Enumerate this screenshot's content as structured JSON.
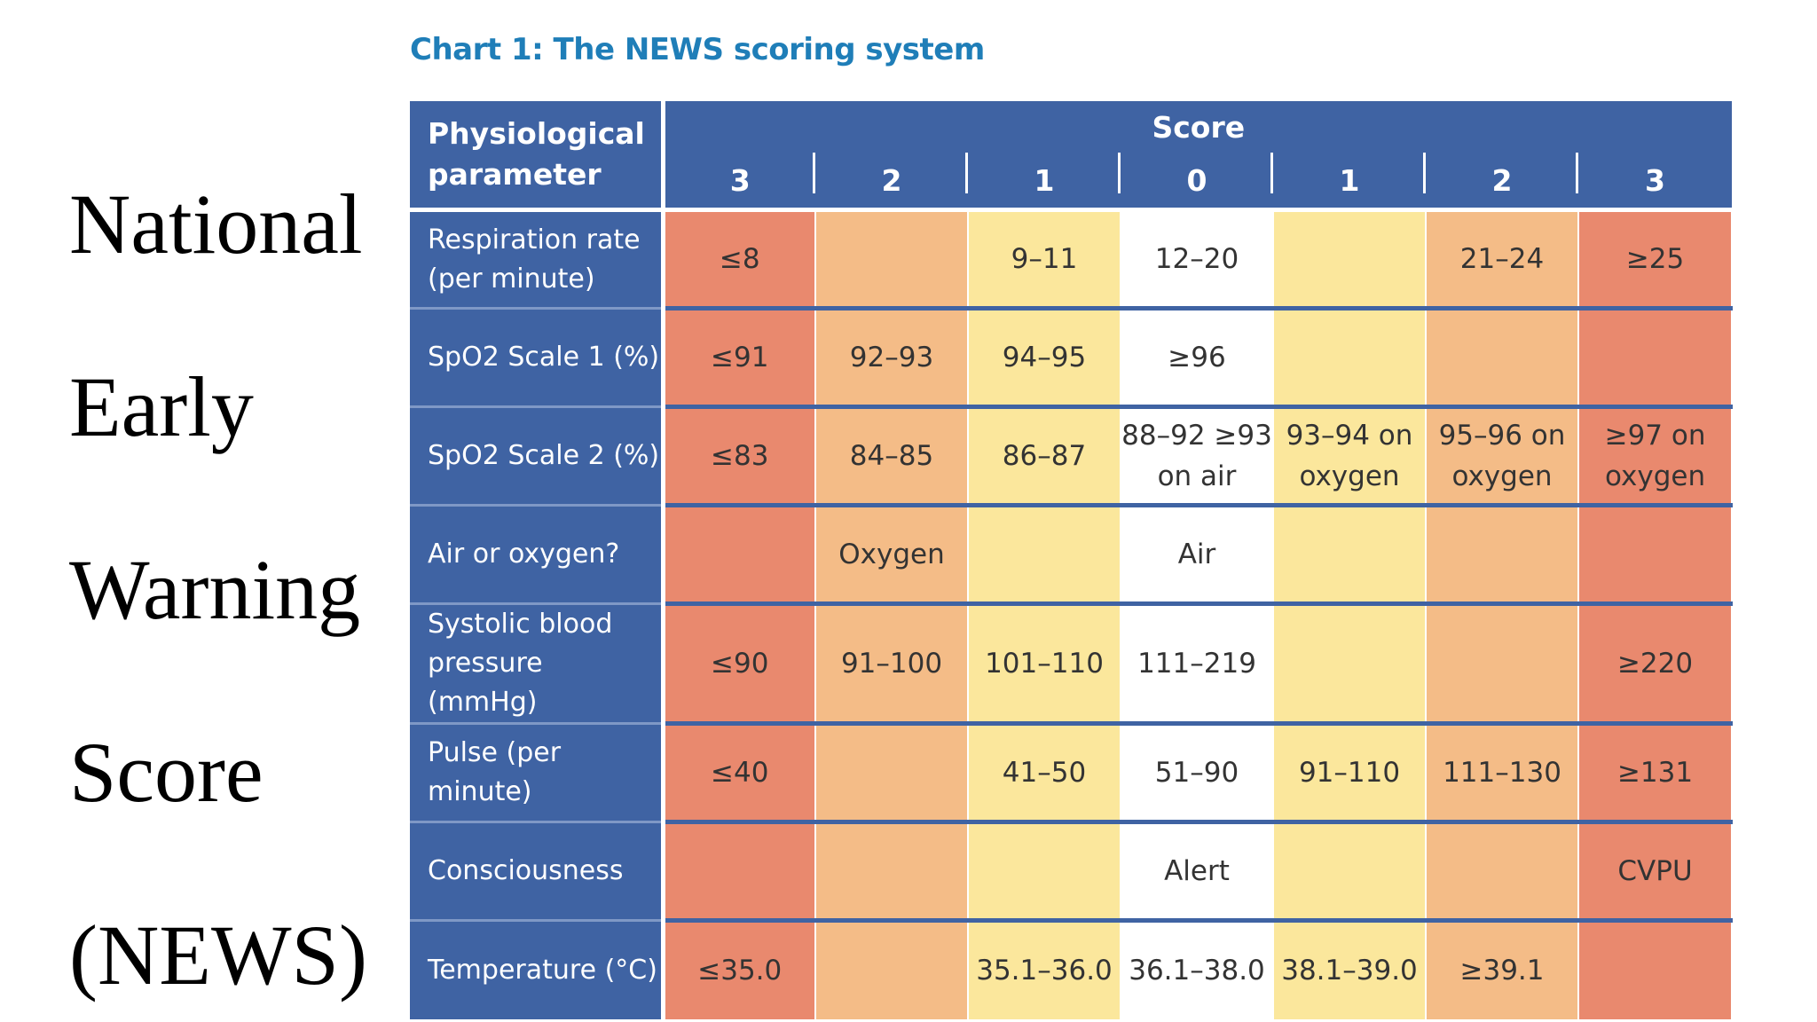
{
  "side_title": [
    "National",
    "Early",
    "Warning",
    "Score",
    "(NEWS)"
  ],
  "caption": "Chart 1:  The NEWS scoring system",
  "header": {
    "parameter": "Physiological parameter",
    "score": "Score",
    "score_columns": [
      "3",
      "2",
      "1",
      "0",
      "1",
      "2",
      "3"
    ]
  },
  "rows": [
    {
      "parameter": "Respiration rate (per minute)",
      "cells": [
        "≤8",
        "",
        "9–11",
        "12–20",
        "",
        "21–24",
        "≥25"
      ]
    },
    {
      "parameter": "SpO2 Scale 1 (%)",
      "cells": [
        "≤91",
        "92–93",
        "94–95",
        "≥96",
        "",
        "",
        ""
      ]
    },
    {
      "parameter": "SpO2 Scale 2 (%)",
      "cells": [
        "≤83",
        "84–85",
        "86–87",
        "88–92 ≥93 on air",
        "93–94 on oxygen",
        "95–96 on oxygen",
        "≥97 on oxygen"
      ]
    },
    {
      "parameter": "Air or oxygen?",
      "cells": [
        "",
        "Oxygen",
        "",
        "Air",
        "",
        "",
        ""
      ]
    },
    {
      "parameter": "Systolic blood pressure (mmHg)",
      "cells": [
        "≤90",
        "91–100",
        "101–110",
        "111–219",
        "",
        "",
        "≥220"
      ]
    },
    {
      "parameter": "Pulse (per minute)",
      "cells": [
        "≤40",
        "",
        "41–50",
        "51–90",
        "91–110",
        "111–130",
        "≥131"
      ]
    },
    {
      "parameter": "Consciousness",
      "cells": [
        "",
        "",
        "",
        "Alert",
        "",
        "",
        "CVPU"
      ]
    },
    {
      "parameter": "Temperature (°C)",
      "cells": [
        "≤35.0",
        "",
        "35.1–36.0",
        "36.1–38.0",
        "38.1–39.0",
        "≥39.1",
        ""
      ]
    }
  ],
  "colors": {
    "header_blue": "#3f63a3",
    "score_3": "#e9896e",
    "score_2": "#f4bc87",
    "score_1": "#fbe79c",
    "score_0": "#ffffff",
    "caption": "#1f7eb8"
  }
}
